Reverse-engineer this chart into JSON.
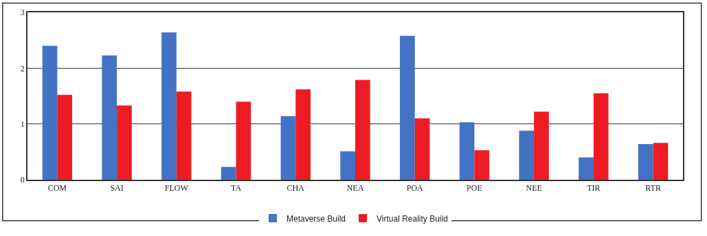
{
  "chart_data": {
    "type": "bar",
    "categories": [
      "COM",
      "SAI",
      "FLOW",
      "TA",
      "CHA",
      "NEA",
      "POA",
      "POE",
      "NEE",
      "TIR",
      "RTR"
    ],
    "series": [
      {
        "name": "Metaverse Build",
        "color": "#4472c4",
        "values": [
          2.4,
          2.23,
          2.64,
          0.23,
          1.14,
          0.51,
          2.58,
          1.03,
          0.88,
          0.4,
          0.64
        ]
      },
      {
        "name": "Virtual Reality Build",
        "color": "#ed1c24",
        "values": [
          1.52,
          1.33,
          1.58,
          1.4,
          1.62,
          1.79,
          1.1,
          0.53,
          1.22,
          1.55,
          0.66
        ]
      }
    ],
    "ylim": [
      0,
      3
    ],
    "yticks": [
      0,
      1,
      2,
      3
    ],
    "grid": "y",
    "legend": "bottom"
  }
}
